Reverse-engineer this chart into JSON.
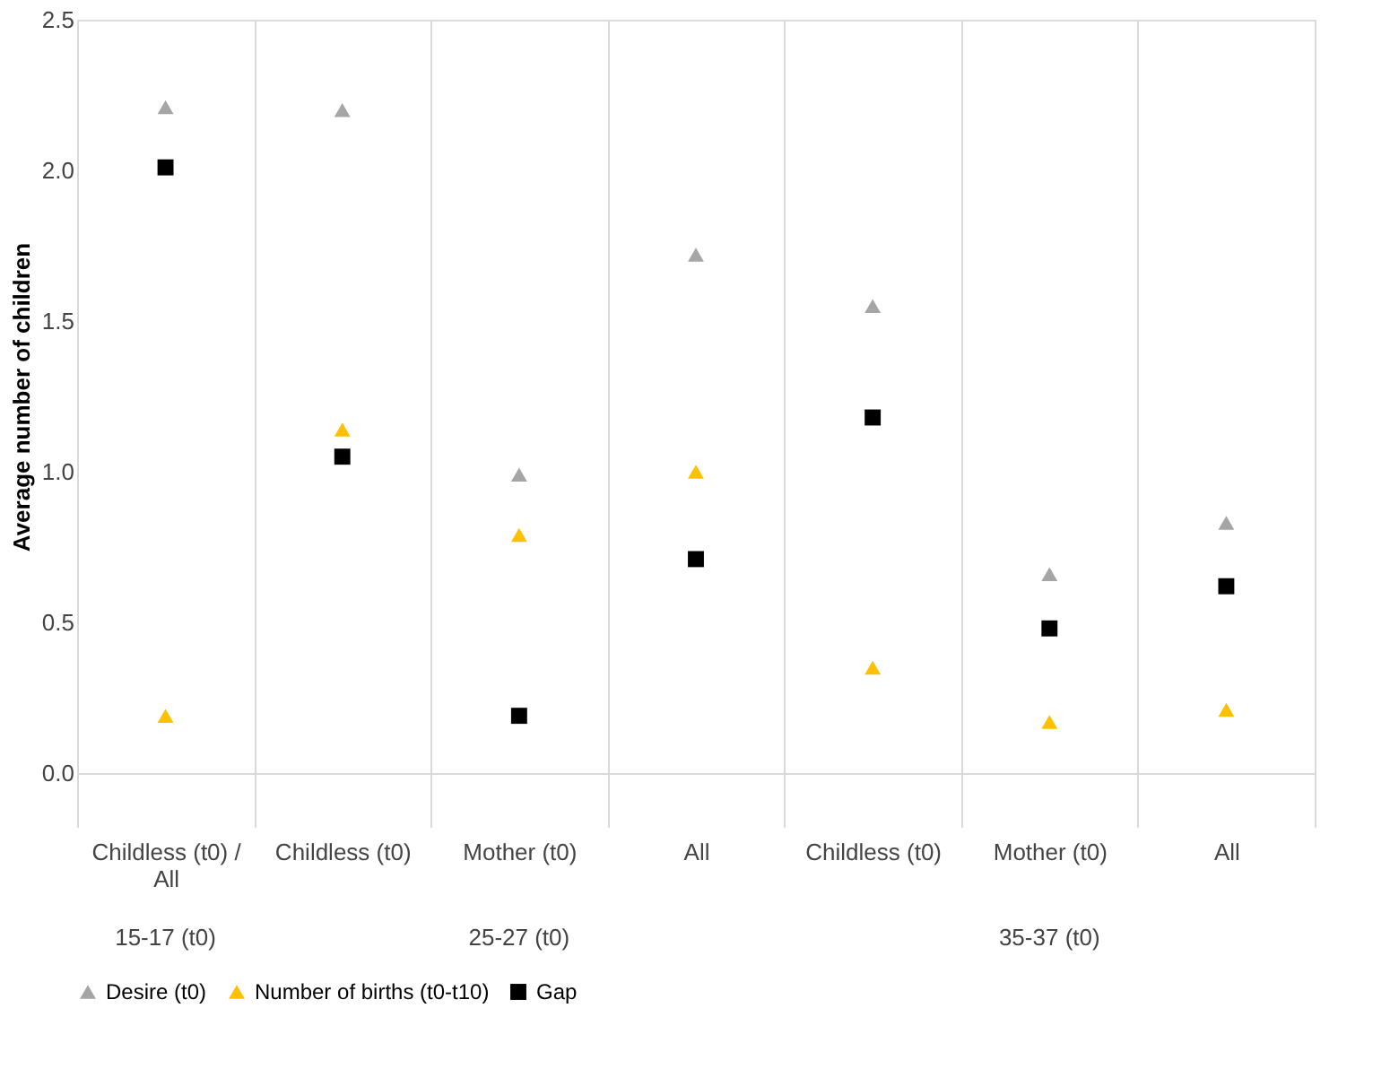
{
  "chart_data": {
    "type": "scatter",
    "ylabel": "Average number of children",
    "categories": [
      "Childless (t0) / All",
      "Childless (t0)",
      "Mother (t0)",
      "All",
      "Childless (t0)",
      "Mother (t0)",
      "All"
    ],
    "series": [
      {
        "name": "Desire (t0)",
        "color": "#a5a5a5",
        "marker": "triangle",
        "values": [
          2.21,
          2.2,
          0.99,
          1.72,
          1.55,
          0.66,
          0.83
        ]
      },
      {
        "name": "Number of births (t0-t10)",
        "color": "#ffc000",
        "marker": "triangle",
        "values": [
          0.19,
          1.14,
          0.79,
          1.0,
          0.35,
          0.17,
          0.21
        ]
      },
      {
        "name": "Gap",
        "color": "#000000",
        "marker": "square",
        "values": [
          2.01,
          1.05,
          0.19,
          0.71,
          1.18,
          0.48,
          0.62
        ]
      }
    ],
    "ylim": [
      0,
      2.5
    ],
    "yticks": [
      {
        "value": 0,
        "label": "0.0"
      },
      {
        "value": 0.5,
        "label": "0.5"
      },
      {
        "value": 1,
        "label": "1.0"
      },
      {
        "value": 1.5,
        "label": "1.5"
      },
      {
        "value": 2,
        "label": "2.0"
      },
      {
        "value": 2.5,
        "label": "2.5"
      }
    ],
    "annotations": [
      "15-17 (t0)",
      "25-27 (t0)",
      "35-37 (t0)"
    ],
    "grid": "x",
    "legend": "bottom"
  }
}
